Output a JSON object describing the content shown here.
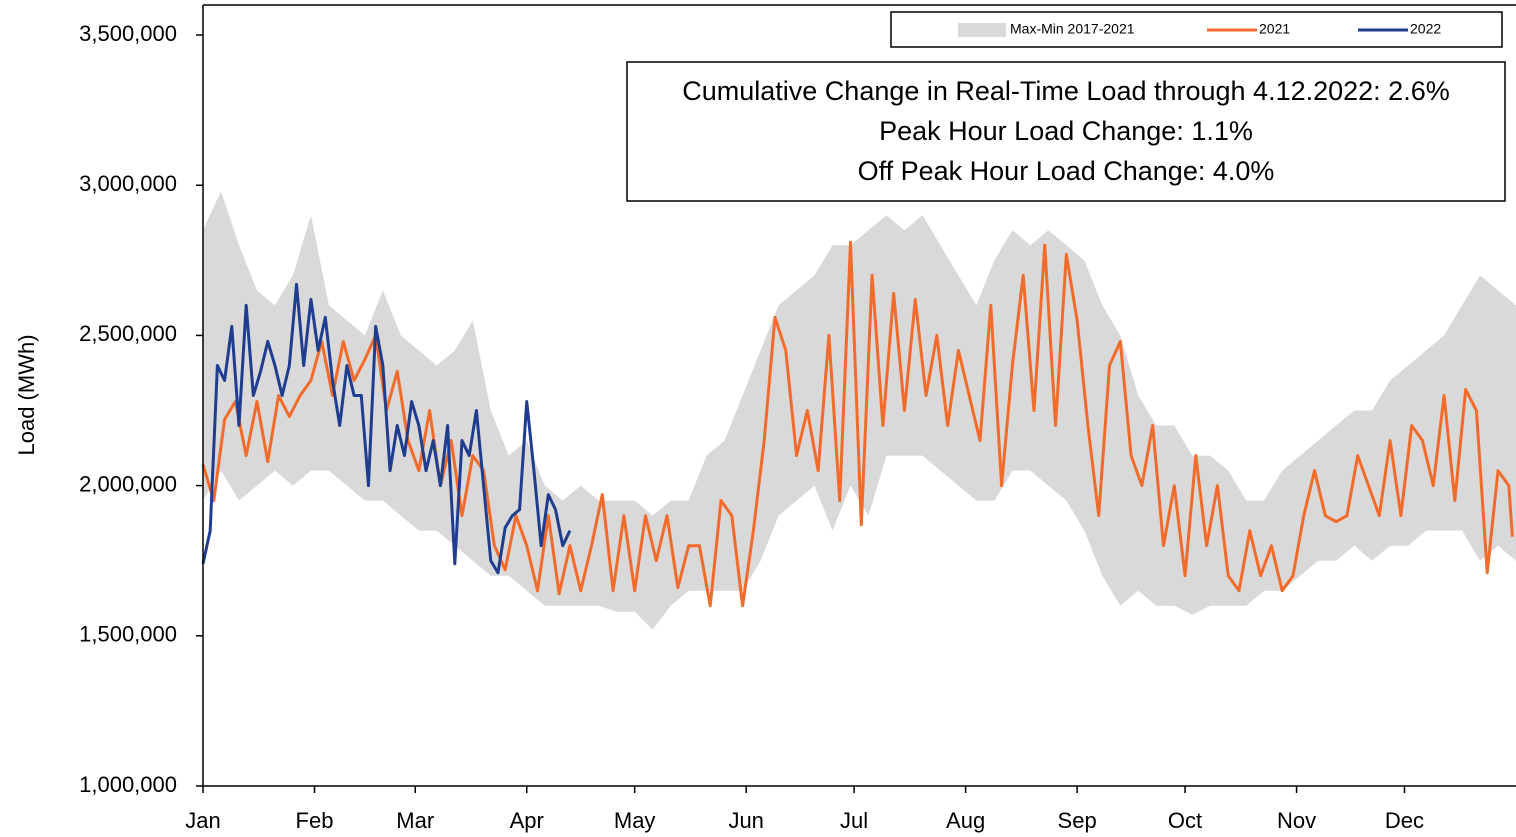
{
  "chart_data": {
    "type": "line",
    "y_label": "Load (MWh)",
    "annotations": [
      "Cumulative Change in Real-Time Load through 4.12.2022: 2.6%",
      "Peak Hour Load Change: 1.1%",
      "Off Peak Hour Load Change: 4.0%"
    ],
    "xlim": [
      0,
      365
    ],
    "xticks": [
      {
        "value": 0,
        "label": "Jan"
      },
      {
        "value": 31,
        "label": "Feb"
      },
      {
        "value": 59,
        "label": "Mar"
      },
      {
        "value": 90,
        "label": "Apr"
      },
      {
        "value": 120,
        "label": "May"
      },
      {
        "value": 151,
        "label": "Jun"
      },
      {
        "value": 181,
        "label": "Jul"
      },
      {
        "value": 212,
        "label": "Aug"
      },
      {
        "value": 243,
        "label": "Sep"
      },
      {
        "value": 273,
        "label": "Oct"
      },
      {
        "value": 304,
        "label": "Nov"
      },
      {
        "value": 334,
        "label": "Dec"
      }
    ],
    "ylim": [
      1000000,
      3600000
    ],
    "yticks": [
      {
        "value": 1000000,
        "label": "1,000,000"
      },
      {
        "value": 1500000,
        "label": "1,500,000"
      },
      {
        "value": 2000000,
        "label": "2,000,000"
      },
      {
        "value": 2500000,
        "label": "2,500,000"
      },
      {
        "value": 3000000,
        "label": "3,000,000"
      },
      {
        "value": 3500000,
        "label": "3,500,000"
      }
    ],
    "series": [
      {
        "name": "Max-Min 2017-2021",
        "color": "#d9d9d9",
        "x": [
          0,
          5,
          10,
          15,
          20,
          25,
          30,
          35,
          40,
          45,
          50,
          55,
          60,
          65,
          70,
          75,
          80,
          85,
          90,
          95,
          100,
          105,
          110,
          115,
          120,
          125,
          130,
          135,
          140,
          145,
          150,
          155,
          160,
          165,
          170,
          175,
          180,
          185,
          190,
          195,
          200,
          205,
          210,
          215,
          220,
          225,
          230,
          235,
          240,
          245,
          250,
          255,
          260,
          265,
          270,
          275,
          280,
          285,
          290,
          295,
          300,
          305,
          310,
          315,
          320,
          325,
          330,
          335,
          340,
          345,
          350,
          355,
          360,
          365
        ],
        "upper": [
          2850000,
          2980000,
          2800000,
          2650000,
          2600000,
          2700000,
          2900000,
          2600000,
          2550000,
          2500000,
          2650000,
          2500000,
          2450000,
          2400000,
          2450000,
          2550000,
          2250000,
          2100000,
          2150000,
          2000000,
          1950000,
          2000000,
          1950000,
          1950000,
          1950000,
          1900000,
          1950000,
          1950000,
          2100000,
          2150000,
          2300000,
          2450000,
          2600000,
          2650000,
          2700000,
          2800000,
          2800000,
          2850000,
          2900000,
          2850000,
          2900000,
          2800000,
          2700000,
          2600000,
          2750000,
          2850000,
          2800000,
          2850000,
          2800000,
          2750000,
          2600000,
          2500000,
          2300000,
          2200000,
          2200000,
          2100000,
          2100000,
          2050000,
          1950000,
          1950000,
          2050000,
          2100000,
          2150000,
          2200000,
          2250000,
          2250000,
          2350000,
          2400000,
          2450000,
          2500000,
          2600000,
          2700000,
          2650000,
          2600000
        ],
        "lower": [
          1950000,
          2050000,
          1950000,
          2000000,
          2050000,
          2000000,
          2050000,
          2050000,
          2000000,
          1950000,
          1950000,
          1900000,
          1850000,
          1850000,
          1800000,
          1750000,
          1700000,
          1700000,
          1650000,
          1600000,
          1600000,
          1600000,
          1600000,
          1580000,
          1580000,
          1520000,
          1600000,
          1650000,
          1650000,
          1650000,
          1650000,
          1750000,
          1900000,
          1950000,
          2000000,
          1850000,
          2000000,
          1900000,
          2100000,
          2100000,
          2100000,
          2050000,
          2000000,
          1950000,
          1950000,
          2050000,
          2050000,
          2000000,
          1950000,
          1850000,
          1700000,
          1600000,
          1650000,
          1600000,
          1600000,
          1570000,
          1600000,
          1600000,
          1600000,
          1650000,
          1650000,
          1700000,
          1750000,
          1750000,
          1800000,
          1750000,
          1800000,
          1800000,
          1850000,
          1850000,
          1850000,
          1750000,
          1800000,
          1750000
        ]
      },
      {
        "name": "2021",
        "color": "#f26b2a",
        "x": [
          0,
          3,
          6,
          9,
          12,
          15,
          18,
          21,
          24,
          27,
          30,
          33,
          36,
          39,
          42,
          45,
          48,
          51,
          54,
          57,
          60,
          63,
          66,
          69,
          72,
          75,
          78,
          81,
          84,
          87,
          90,
          93,
          96,
          99,
          102,
          105,
          108,
          111,
          114,
          117,
          120,
          123,
          126,
          129,
          132,
          135,
          138,
          141,
          144,
          147,
          150,
          153,
          156,
          159,
          162,
          165,
          168,
          171,
          174,
          177,
          180,
          183,
          186,
          189,
          192,
          195,
          198,
          201,
          204,
          207,
          210,
          213,
          216,
          219,
          222,
          225,
          228,
          231,
          234,
          237,
          240,
          243,
          246,
          249,
          252,
          255,
          258,
          261,
          264,
          267,
          270,
          273,
          276,
          279,
          282,
          285,
          288,
          291,
          294,
          297,
          300,
          303,
          306,
          309,
          312,
          315,
          318,
          321,
          324,
          327,
          330,
          333,
          336,
          339,
          342,
          345,
          348,
          351,
          354,
          357,
          360,
          363,
          364
        ],
        "values": [
          2070000,
          1950000,
          2220000,
          2280000,
          2100000,
          2280000,
          2080000,
          2300000,
          2230000,
          2300000,
          2350000,
          2480000,
          2300000,
          2480000,
          2350000,
          2420000,
          2500000,
          2250000,
          2380000,
          2150000,
          2050000,
          2250000,
          2000000,
          2150000,
          1900000,
          2100000,
          2050000,
          1800000,
          1720000,
          1900000,
          1800000,
          1650000,
          1900000,
          1640000,
          1800000,
          1650000,
          1800000,
          1970000,
          1650000,
          1900000,
          1650000,
          1900000,
          1750000,
          1900000,
          1660000,
          1800000,
          1800000,
          1600000,
          1950000,
          1900000,
          1600000,
          1850000,
          2150000,
          2560000,
          2450000,
          2100000,
          2250000,
          2050000,
          2500000,
          1950000,
          2810000,
          1870000,
          2700000,
          2200000,
          2640000,
          2250000,
          2620000,
          2300000,
          2500000,
          2200000,
          2450000,
          2300000,
          2150000,
          2600000,
          2000000,
          2400000,
          2700000,
          2250000,
          2800000,
          2200000,
          2770000,
          2550000,
          2200000,
          1900000,
          2400000,
          2480000,
          2100000,
          2000000,
          2200000,
          1800000,
          2000000,
          1700000,
          2100000,
          1800000,
          2000000,
          1700000,
          1650000,
          1850000,
          1700000,
          1800000,
          1650000,
          1700000,
          1900000,
          2050000,
          1900000,
          1880000,
          1900000,
          2100000,
          2000000,
          1900000,
          2150000,
          1900000,
          2200000,
          2150000,
          2000000,
          2300000,
          1950000,
          2320000,
          2250000,
          1710000,
          2050000,
          2000000,
          1830000
        ]
      },
      {
        "name": "2022",
        "color": "#1f3d8f",
        "x": [
          0,
          2,
          4,
          6,
          8,
          10,
          12,
          14,
          16,
          18,
          20,
          22,
          24,
          26,
          28,
          30,
          32,
          34,
          36,
          38,
          40,
          42,
          44,
          46,
          48,
          50,
          52,
          54,
          56,
          58,
          60,
          62,
          64,
          66,
          68,
          70,
          72,
          74,
          76,
          78,
          80,
          82,
          84,
          86,
          88,
          90,
          92,
          94,
          96,
          98,
          100,
          102
        ],
        "values": [
          1740000,
          1850000,
          2400000,
          2350000,
          2530000,
          2200000,
          2600000,
          2300000,
          2380000,
          2480000,
          2400000,
          2300000,
          2400000,
          2670000,
          2400000,
          2620000,
          2450000,
          2560000,
          2350000,
          2200000,
          2400000,
          2300000,
          2300000,
          2000000,
          2530000,
          2400000,
          2050000,
          2200000,
          2100000,
          2280000,
          2200000,
          2050000,
          2150000,
          2000000,
          2200000,
          1740000,
          2150000,
          2100000,
          2250000,
          2000000,
          1750000,
          1710000,
          1860000,
          1900000,
          1920000,
          2280000,
          2050000,
          1800000,
          1970000,
          1920000,
          1800000,
          1850000
        ]
      }
    ]
  }
}
